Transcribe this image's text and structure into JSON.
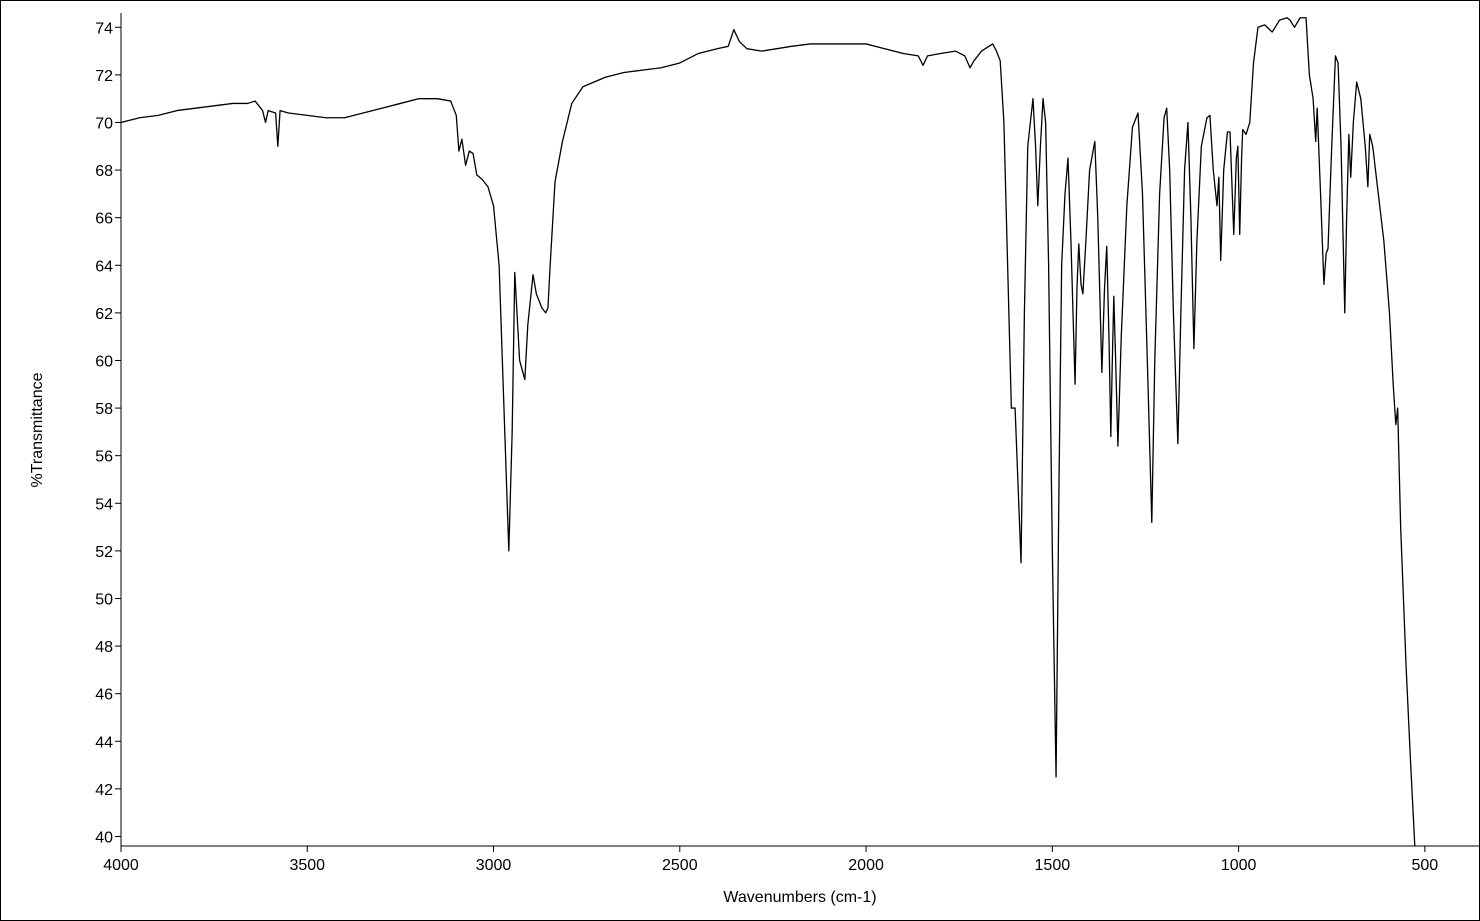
{
  "chart_data": {
    "type": "line",
    "x_label": "Wavenumbers (cm-1)",
    "y_label": "%Transmittance",
    "xlim": [
      4000,
      352
    ],
    "ylim": [
      39.6,
      74.6
    ],
    "xticks": [
      4000,
      3500,
      3000,
      2500,
      2000,
      1500,
      1000,
      500
    ],
    "yticks": [
      40,
      42,
      44,
      46,
      48,
      50,
      52,
      54,
      56,
      58,
      60,
      62,
      64,
      66,
      68,
      70,
      72,
      74
    ],
    "color": "#000000",
    "x": [
      4000,
      3950,
      3900,
      3850,
      3800,
      3750,
      3700,
      3660,
      3640,
      3620,
      3612,
      3605,
      3585,
      3579,
      3573,
      3550,
      3500,
      3450,
      3400,
      3350,
      3300,
      3250,
      3200,
      3150,
      3115,
      3100,
      3093,
      3085,
      3075,
      3065,
      3055,
      3045,
      3030,
      3015,
      3000,
      2985,
      2972,
      2959,
      2950,
      2943,
      2937,
      2930,
      2916,
      2908,
      2894,
      2885,
      2870,
      2860,
      2854,
      2848,
      2835,
      2815,
      2790,
      2760,
      2700,
      2650,
      2600,
      2550,
      2500,
      2450,
      2400,
      2370,
      2355,
      2340,
      2320,
      2280,
      2200,
      2150,
      2100,
      2050,
      2000,
      1950,
      1900,
      1860,
      1847,
      1835,
      1800,
      1760,
      1735,
      1721,
      1710,
      1690,
      1670,
      1660,
      1650,
      1640,
      1630,
      1620,
      1610,
      1600,
      1584,
      1575,
      1566,
      1552,
      1545,
      1539,
      1532,
      1525,
      1518,
      1510,
      1500,
      1490,
      1482,
      1475,
      1466,
      1458,
      1450,
      1439,
      1434,
      1429,
      1423,
      1418,
      1410,
      1400,
      1386,
      1378,
      1367,
      1360,
      1354,
      1348,
      1343,
      1339,
      1335,
      1330,
      1324,
      1315,
      1300,
      1285,
      1270,
      1258,
      1245,
      1233,
      1225,
      1212,
      1200,
      1193,
      1185,
      1175,
      1163,
      1155,
      1145,
      1136,
      1128,
      1120,
      1112,
      1100,
      1085,
      1077,
      1068,
      1058,
      1053,
      1048,
      1040,
      1030,
      1023,
      1013,
      1006,
      1002,
      997,
      992,
      989,
      980,
      970,
      960,
      948,
      930,
      910,
      890,
      870,
      862,
      850,
      835,
      819,
      810,
      800,
      793,
      789,
      780,
      771,
      765,
      760,
      750,
      740,
      733,
      725,
      715,
      710,
      704,
      699,
      692,
      683,
      672,
      660,
      653,
      648,
      640,
      625,
      610,
      595,
      585,
      578,
      573,
      565,
      550,
      538,
      527
    ],
    "values": [
      70.0,
      70.2,
      70.3,
      70.5,
      70.6,
      70.7,
      70.8,
      70.8,
      70.9,
      70.5,
      70.0,
      70.5,
      70.4,
      69.0,
      70.5,
      70.4,
      70.3,
      70.2,
      70.2,
      70.4,
      70.6,
      70.8,
      71.0,
      71.0,
      70.9,
      70.3,
      68.8,
      69.3,
      68.2,
      68.8,
      68.7,
      67.8,
      67.6,
      67.3,
      66.5,
      64,
      58,
      52.0,
      57,
      63.7,
      62,
      60,
      59.2,
      61.5,
      63.6,
      62.8,
      62.2,
      62.0,
      62.2,
      64,
      67.5,
      69.2,
      70.8,
      71.5,
      71.9,
      72.1,
      72.2,
      72.3,
      72.5,
      72.9,
      73.1,
      73.2,
      73.9,
      73.4,
      73.1,
      73.0,
      73.2,
      73.3,
      73.3,
      73.3,
      73.3,
      73.1,
      72.9,
      72.8,
      72.4,
      72.8,
      72.9,
      73.0,
      72.8,
      72.3,
      72.6,
      73.0,
      73.2,
      73.3,
      73.0,
      72.6,
      70,
      64,
      58,
      58,
      51.5,
      62,
      69,
      71,
      69,
      66.5,
      69,
      71,
      70,
      64,
      52,
      42.5,
      55,
      64,
      67,
      68.5,
      65,
      59,
      63,
      64.9,
      63.2,
      62.8,
      65,
      68,
      69.2,
      66,
      59.5,
      63,
      64.8,
      61,
      56.8,
      60,
      62.7,
      60,
      56.4,
      61,
      66.5,
      69.8,
      70.4,
      67,
      60,
      53.2,
      60,
      67,
      70.2,
      70.6,
      68,
      62,
      56.5,
      62,
      68,
      70,
      66,
      60.5,
      65,
      69,
      70.2,
      70.3,
      68,
      66.5,
      67.7,
      64.2,
      68,
      69.6,
      69.6,
      65.3,
      68.5,
      69,
      65.3,
      68.5,
      69.7,
      69.5,
      70,
      72.5,
      74,
      74.1,
      73.8,
      74.3,
      74.4,
      74.3,
      74.0,
      74.4,
      74.4,
      72,
      71,
      69.2,
      70.6,
      67,
      63.2,
      64.5,
      64.7,
      69,
      72.8,
      72.5,
      69,
      62.0,
      66,
      69.5,
      67.7,
      70,
      71.7,
      71,
      69,
      67.3,
      69.5,
      69,
      67,
      65,
      62,
      59,
      57.3,
      58,
      53,
      47,
      43,
      39.6
    ]
  }
}
